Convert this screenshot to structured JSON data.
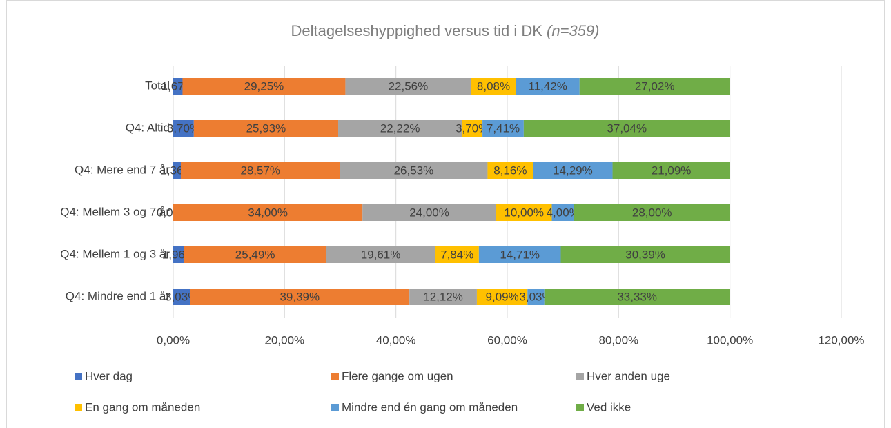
{
  "chart_data": {
    "type": "stacked_bar_horizontal",
    "title": "Deltagelseshyppighed versus tid i DK",
    "subtitle": "(n=359)",
    "categories": [
      "Total",
      "Q4: Altid",
      "Q4: Mere end 7 år",
      "Q4: Mellem 3 og 7 år",
      "Q4: Mellem 1 og 3 år",
      "Q4: Mindre end 1 år"
    ],
    "series": [
      {
        "name": "Hver dag",
        "color": "#4472c4",
        "values": [
          1.67,
          3.7,
          1.36,
          0.0,
          1.96,
          3.03
        ],
        "value_labels": [
          "1,67%",
          "3,70%",
          "1,36%",
          "0,00%",
          "1,96%",
          "3,03%"
        ]
      },
      {
        "name": "Flere gange om ugen",
        "color": "#ed7d31",
        "values": [
          29.25,
          25.93,
          28.57,
          34.0,
          25.49,
          39.39
        ],
        "value_labels": [
          "29,25%",
          "25,93%",
          "28,57%",
          "34,00%",
          "25,49%",
          "39,39%"
        ]
      },
      {
        "name": "Hver anden uge",
        "color": "#a5a5a5",
        "values": [
          22.56,
          22.22,
          26.53,
          24.0,
          19.61,
          12.12
        ],
        "value_labels": [
          "22,56%",
          "22,22%",
          "26,53%",
          "24,00%",
          "19,61%",
          "12,12%"
        ]
      },
      {
        "name": "En gang om måneden",
        "color": "#ffc000",
        "values": [
          8.08,
          3.7,
          8.16,
          10.0,
          7.84,
          9.09
        ],
        "value_labels": [
          "8,08%",
          "3,70%",
          "8,16%",
          "10,00%",
          "7,84%",
          "9,09%"
        ]
      },
      {
        "name": "Mindre end én gang om måneden",
        "color": "#5b9bd5",
        "values": [
          11.42,
          7.41,
          14.29,
          4.0,
          14.71,
          3.03
        ],
        "value_labels": [
          "11,42%",
          "7,41%",
          "14,29%",
          "4,00%",
          "14,71%",
          "3,03%"
        ]
      },
      {
        "name": "Ved ikke",
        "color": "#70ad47",
        "values": [
          27.02,
          37.04,
          21.09,
          28.0,
          30.39,
          33.33
        ],
        "value_labels": [
          "27,02%",
          "37,04%",
          "21,09%",
          "28,00%",
          "30,39%",
          "33,33%"
        ]
      }
    ],
    "xlim": [
      0,
      120
    ],
    "xticks": [
      {
        "value": 0,
        "label": "0,00%"
      },
      {
        "value": 20,
        "label": "20,00%"
      },
      {
        "value": 40,
        "label": "40,00%"
      },
      {
        "value": 60,
        "label": "60,00%"
      },
      {
        "value": 80,
        "label": "80,00%"
      },
      {
        "value": 100,
        "label": "100,00%"
      },
      {
        "value": 120,
        "label": "120,00%"
      }
    ],
    "grid": true,
    "legend": "bottom"
  }
}
